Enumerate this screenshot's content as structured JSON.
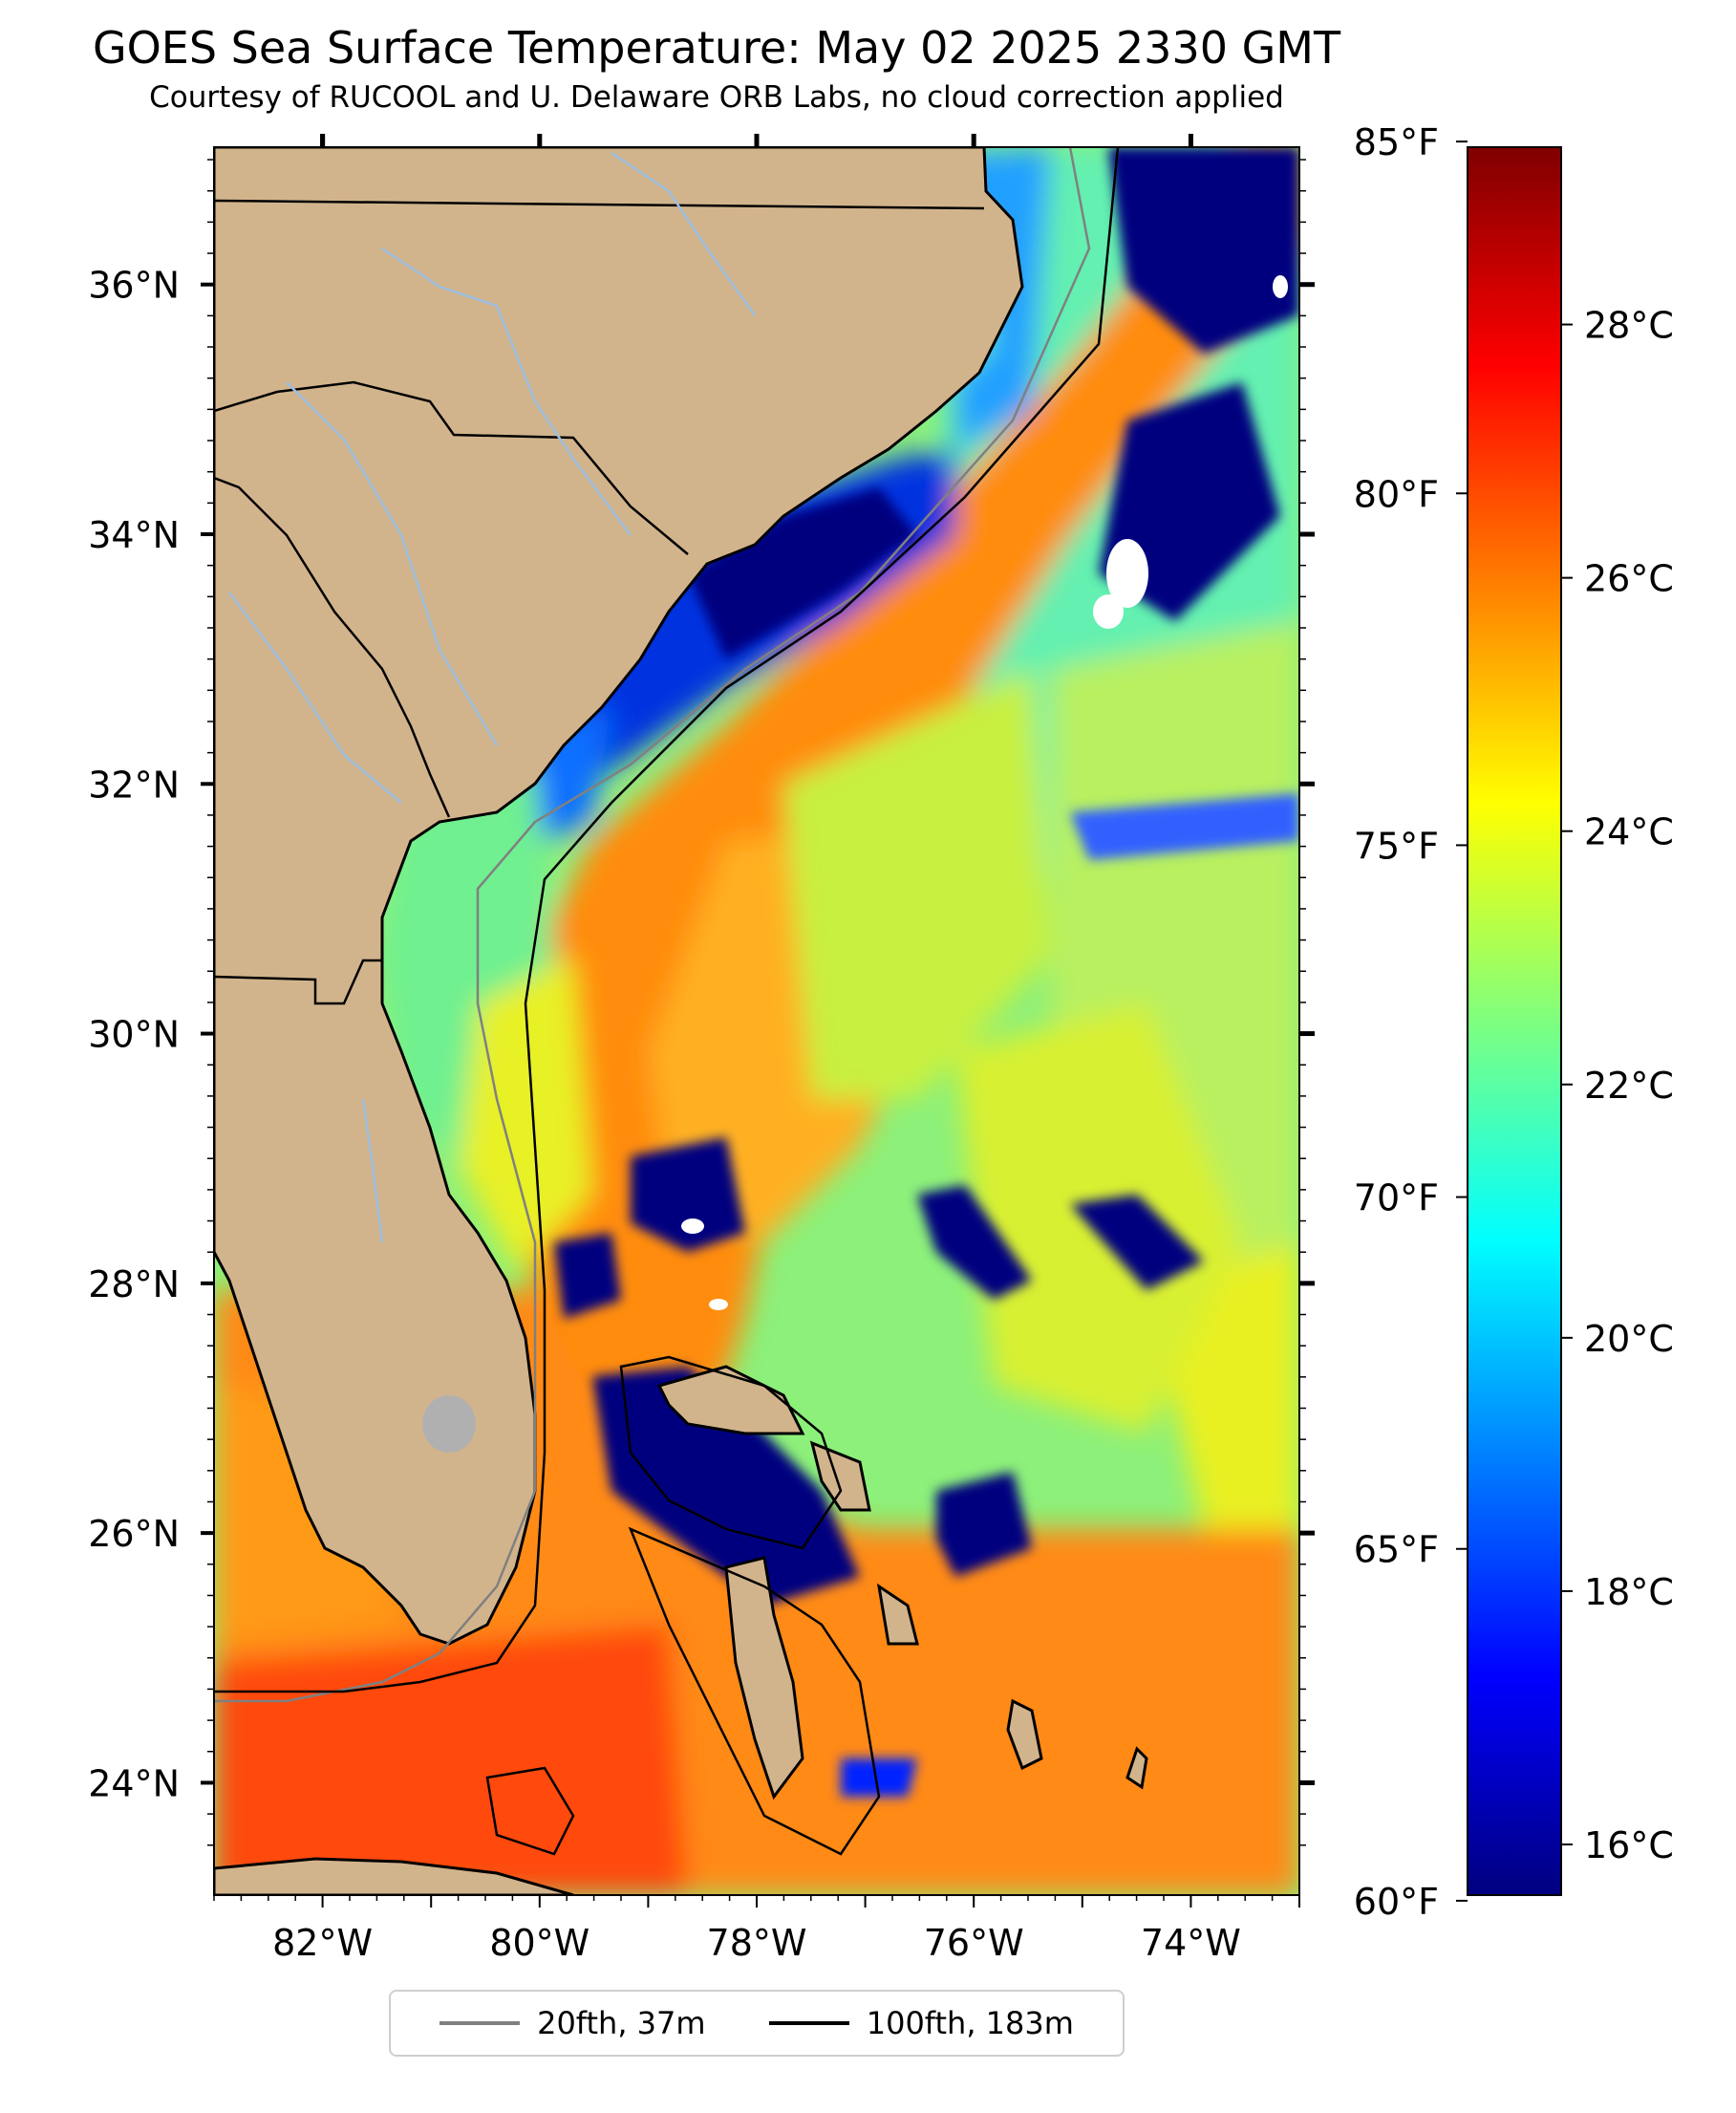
{
  "title": "GOES Sea Surface Temperature: May 02 2025 2330 GMT",
  "subtitle": "Courtesy of RUCOOL and U. Delaware ORB Labs, no cloud correction applied",
  "map": {
    "lon_range": [
      -83,
      -73
    ],
    "lat_range": [
      23.1,
      37.1
    ],
    "lon_ticks": [
      {
        "value": -82,
        "label": "82°W"
      },
      {
        "value": -80,
        "label": "80°W"
      },
      {
        "value": -78,
        "label": "78°W"
      },
      {
        "value": -76,
        "label": "76°W"
      },
      {
        "value": -74,
        "label": "74°W"
      }
    ],
    "lat_ticks": [
      {
        "value": 24,
        "label": "24°N"
      },
      {
        "value": 26,
        "label": "26°N"
      },
      {
        "value": 28,
        "label": "28°N"
      },
      {
        "value": 30,
        "label": "30°N"
      },
      {
        "value": 32,
        "label": "32°N"
      },
      {
        "value": 34,
        "label": "34°N"
      },
      {
        "value": 36,
        "label": "36°N"
      }
    ],
    "colors": {
      "land": "#d2b48c",
      "cloud": "#ffffff",
      "lake": "#b0b0b0",
      "river": "#9dbfe0"
    }
  },
  "colorbar": {
    "range_c": [
      15.6,
      29.4
    ],
    "celsius_ticks": [
      {
        "value": 16,
        "label": "16°C"
      },
      {
        "value": 18,
        "label": "18°C"
      },
      {
        "value": 20,
        "label": "20°C"
      },
      {
        "value": 22,
        "label": "22°C"
      },
      {
        "value": 24,
        "label": "24°C"
      },
      {
        "value": 26,
        "label": "26°C"
      },
      {
        "value": 28,
        "label": "28°C"
      }
    ],
    "fahrenheit_ticks": [
      {
        "value": 60,
        "label": "60°F"
      },
      {
        "value": 65,
        "label": "65°F"
      },
      {
        "value": 70,
        "label": "70°F"
      },
      {
        "value": 75,
        "label": "75°F"
      },
      {
        "value": 80,
        "label": "80°F"
      },
      {
        "value": 85,
        "label": "85°F"
      }
    ],
    "colormap": "jet",
    "colors": [
      "#00007f",
      "#0000ff",
      "#007fff",
      "#00ffff",
      "#7fff7f",
      "#ffff00",
      "#ff7f00",
      "#ff0000",
      "#7f0000"
    ]
  },
  "legend": {
    "items": [
      {
        "label": "20fth, 37m",
        "color": "#808080"
      },
      {
        "label": "100fth, 183m",
        "color": "#000000"
      }
    ]
  }
}
